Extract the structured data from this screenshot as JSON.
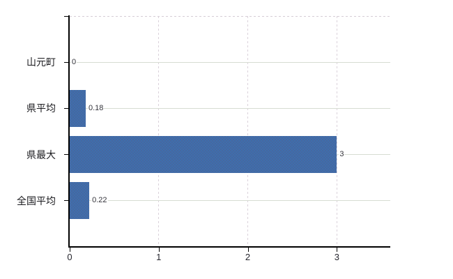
{
  "chart_data": {
    "type": "bar",
    "orientation": "horizontal",
    "title": "",
    "xlabel": "",
    "ylabel": "",
    "categories": [
      "山元町",
      "県平均",
      "県最大",
      "全国平均"
    ],
    "values": [
      0,
      0.18,
      3,
      0.22
    ],
    "value_labels": [
      "0",
      "0.18",
      "3",
      "0.22"
    ],
    "xticks": [
      0,
      1,
      2,
      3
    ],
    "xtick_labels": [
      "0",
      "1",
      "2",
      "3"
    ],
    "xlim": [
      0,
      3.6
    ],
    "legend": "none",
    "grid": "horizontal-solid-and-vertical-dashed",
    "colors": {
      "bar": "#3d6fae",
      "bar_dither": "#47679f",
      "axis": "#000000",
      "h_grid": "#d6dcd2",
      "v_grid": "#dbd2db",
      "category_label": "#1b1b1f",
      "tick_label": "#26262e",
      "value_label": "#33333a",
      "background": "#ffffff"
    }
  }
}
